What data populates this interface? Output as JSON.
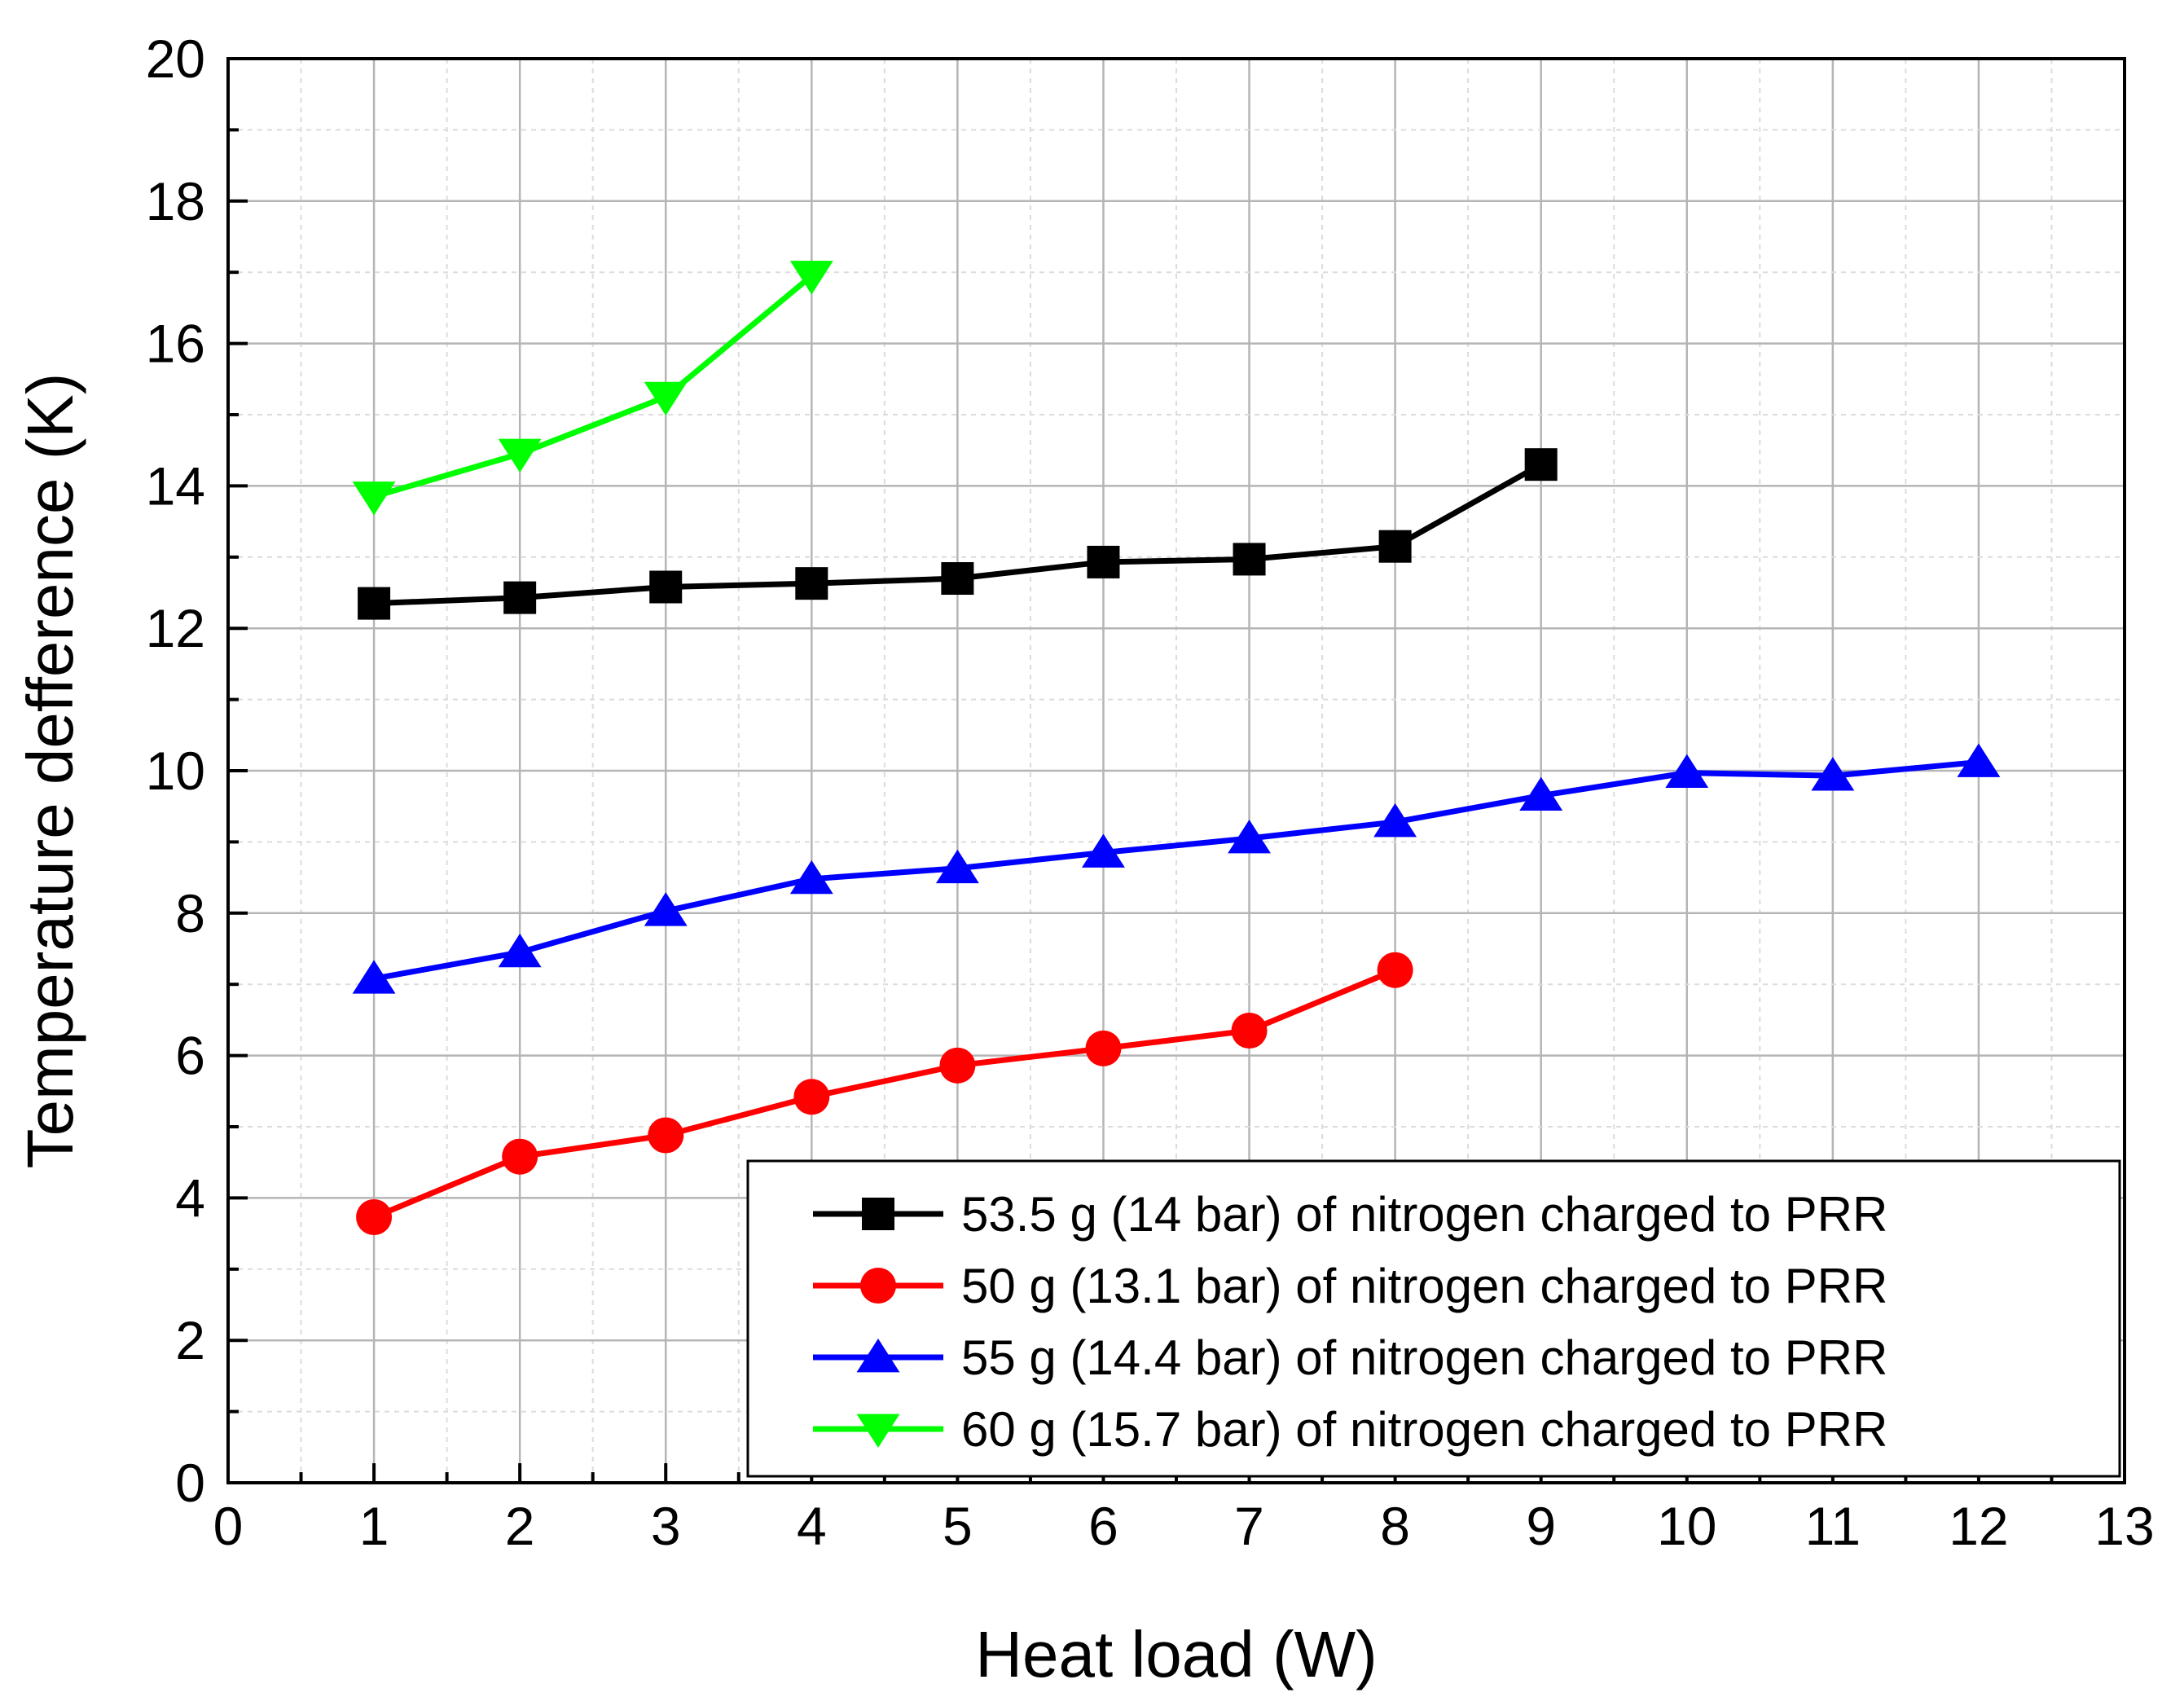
{
  "chart_data": {
    "type": "line",
    "xlabel": "Heat load (W)",
    "ylabel": "Temperature defference (K)",
    "xlim": [
      0,
      13
    ],
    "ylim": [
      0,
      20
    ],
    "xticks": [
      "0",
      "1",
      "2",
      "3",
      "4",
      "5",
      "6",
      "7",
      "8",
      "9",
      "10",
      "11",
      "12",
      "13"
    ],
    "yticks": [
      "0",
      "2",
      "4",
      "6",
      "8",
      "10",
      "12",
      "14",
      "16",
      "18",
      "20"
    ],
    "grid": true,
    "legend_position": "bottom-right",
    "series": [
      {
        "name": "53.5 g (14 bar) of nitrogen charged to PRR",
        "color": "#000000",
        "marker": "square",
        "x": [
          1,
          2,
          3,
          4,
          5,
          6,
          7,
          8,
          9
        ],
        "y": [
          12.35,
          12.43,
          12.58,
          12.63,
          12.7,
          12.93,
          12.97,
          13.15,
          14.3
        ]
      },
      {
        "name": "50 g (13.1 bar) of nitrogen charged to PRR",
        "color": "#ff0000",
        "marker": "circle",
        "x": [
          1,
          2,
          3,
          4,
          5,
          6,
          7,
          8
        ],
        "y": [
          3.73,
          4.58,
          4.88,
          5.42,
          5.86,
          6.1,
          6.35,
          7.2
        ]
      },
      {
        "name": "55 g (14.4 bar) of nitrogen charged to PRR",
        "color": "#0000ff",
        "marker": "triangle-up",
        "x": [
          1,
          2,
          3,
          4,
          5,
          6,
          7,
          8,
          9,
          10,
          11,
          12
        ],
        "y": [
          7.08,
          7.45,
          8.03,
          8.48,
          8.63,
          8.85,
          9.05,
          9.28,
          9.65,
          9.97,
          9.93,
          10.12
        ]
      },
      {
        "name": "60 g (15.7 bar) of nitrogen charged to PRR",
        "color": "#00ff00",
        "marker": "triangle-down",
        "x": [
          1,
          2,
          3,
          4
        ],
        "y": [
          13.85,
          14.45,
          15.25,
          16.95
        ]
      }
    ]
  }
}
